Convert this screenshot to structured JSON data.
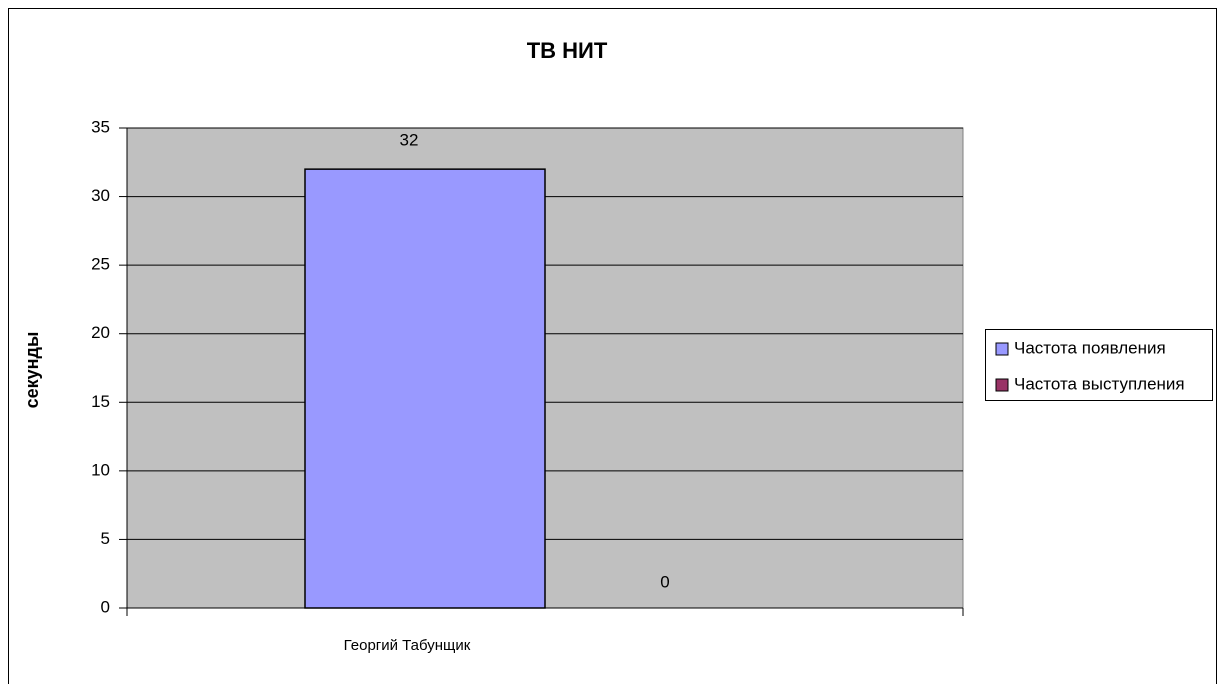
{
  "chart_data": {
    "type": "bar",
    "title": "ТВ НИТ",
    "y_label": "секунды",
    "categories": [
      "Георгий Табунщик"
    ],
    "series": [
      {
        "name": "Частота появления",
        "color": "#9999ff",
        "values": [
          32
        ]
      },
      {
        "name": "Частота выступления",
        "color": "#993366",
        "values": [
          0
        ]
      }
    ],
    "ylim": [
      0,
      35
    ],
    "yticks": [
      0,
      5,
      10,
      15,
      20,
      25,
      30,
      35
    ],
    "grid": true,
    "legend": "right"
  }
}
